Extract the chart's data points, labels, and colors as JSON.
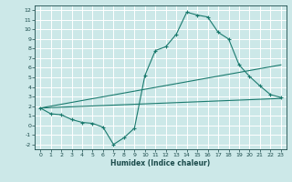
{
  "title": "",
  "xlabel": "Humidex (Indice chaleur)",
  "bg_color": "#cce8e8",
  "grid_color": "#ffffff",
  "line_color": "#1a7a6e",
  "xlim": [
    -0.5,
    23.5
  ],
  "ylim": [
    -2.5,
    12.5
  ],
  "xticks": [
    0,
    1,
    2,
    3,
    4,
    5,
    6,
    7,
    8,
    9,
    10,
    11,
    12,
    13,
    14,
    15,
    16,
    17,
    18,
    19,
    20,
    21,
    22,
    23
  ],
  "yticks": [
    -2,
    -1,
    0,
    1,
    2,
    3,
    4,
    5,
    6,
    7,
    8,
    9,
    10,
    11,
    12
  ],
  "line1_x": [
    0,
    1,
    2,
    3,
    4,
    5,
    6,
    7,
    8,
    9,
    10,
    11,
    12,
    13,
    14,
    15,
    16,
    17,
    18,
    19,
    20,
    21,
    22,
    23
  ],
  "line1_y": [
    1.8,
    1.2,
    1.1,
    0.6,
    0.3,
    0.2,
    -0.2,
    -2.0,
    -1.3,
    -0.3,
    5.2,
    7.8,
    8.2,
    9.5,
    11.8,
    11.5,
    11.3,
    9.7,
    9.0,
    6.3,
    5.1,
    4.1,
    3.2,
    2.9
  ],
  "line2_x": [
    0,
    23
  ],
  "line2_y": [
    1.8,
    2.8
  ],
  "line3_x": [
    0,
    23
  ],
  "line3_y": [
    1.8,
    6.3
  ]
}
